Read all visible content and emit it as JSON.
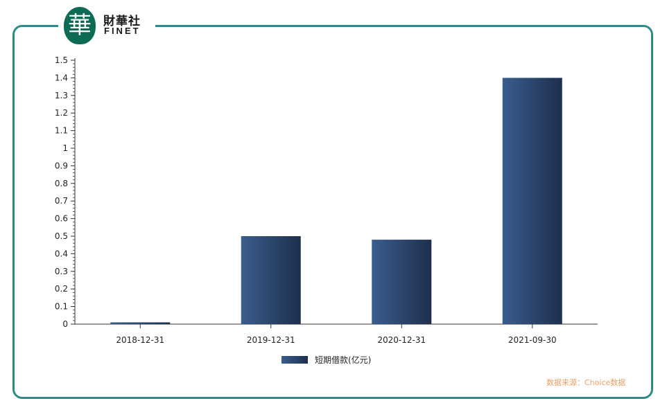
{
  "logo": {
    "mark": "華",
    "name_cn": "財華社",
    "name_en": "FINET"
  },
  "chart_data": {
    "type": "bar",
    "categories": [
      "2018-12-31",
      "2019-12-31",
      "2020-12-31",
      "2021-09-30"
    ],
    "series": [
      {
        "name": "短期借款(亿元)",
        "values": [
          0.01,
          0.5,
          0.48,
          1.4
        ]
      }
    ],
    "ylim": [
      0,
      1.5
    ],
    "yticks": [
      "0",
      "0.1",
      "0.2",
      "0.3",
      "0.4",
      "0.5",
      "0.6",
      "0.7",
      "0.8",
      "0.9",
      "1",
      "1.1",
      "1.2",
      "1.3",
      "1.4",
      "1.5"
    ],
    "grid": false,
    "legend": "bottom-center",
    "bar_color_light": "#3a5d8e",
    "bar_color_dark": "#1e2f4d"
  },
  "footer": {
    "source": "数据来源：Choice数据"
  },
  "colors": {
    "frame": "#2a8c88",
    "logo_green": "#0c6b54",
    "source_text": "#e8a066"
  }
}
